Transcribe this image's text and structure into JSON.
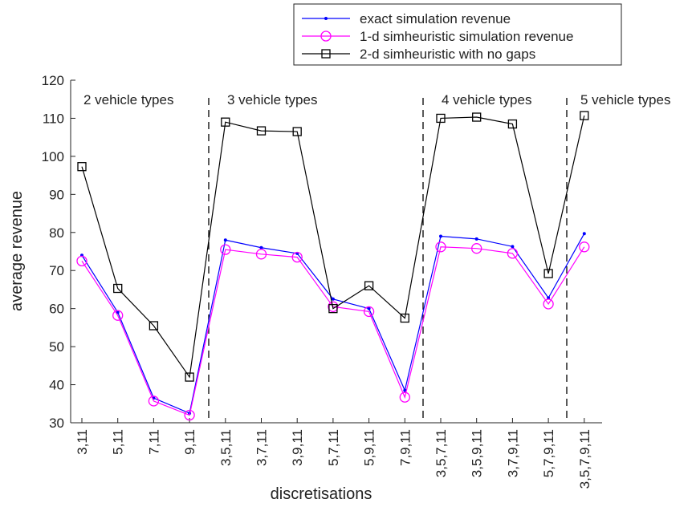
{
  "chart_data": {
    "type": "line",
    "xlabel": "discretisations",
    "ylabel": "average revenue",
    "categories": [
      "3,11",
      "5,11",
      "7,11",
      "9,11",
      "3,5,11",
      "3,7,11",
      "3,9,11",
      "5,7,11",
      "5,9,11",
      "7,9,11",
      "3,5,7,11",
      "3,5,9,11",
      "3,7,9,11",
      "5,7,9,11",
      "3,5,7,9,11"
    ],
    "series": [
      {
        "name": "exact simulation revenue",
        "color": "#0000ff",
        "marker": "dot",
        "values": [
          74,
          59,
          36.5,
          32.5,
          78,
          76,
          74.5,
          62.5,
          60,
          38.5,
          79,
          78.3,
          76.3,
          62.8,
          79.7
        ]
      },
      {
        "name": "1-d simheuristic simulation revenue",
        "color": "#ff00ff",
        "marker": "circle",
        "values": [
          72.5,
          58.2,
          35.7,
          32,
          75.5,
          74.3,
          73.5,
          60.5,
          59.2,
          36.7,
          76.2,
          75.8,
          74.5,
          61.2,
          76.2
        ]
      },
      {
        "name": "2-d simheuristic with no gaps",
        "color": "#000000",
        "marker": "square",
        "values": [
          97.3,
          65.3,
          55.5,
          42,
          109,
          106.7,
          106.5,
          60,
          66,
          57.5,
          110,
          110.3,
          108.5,
          69.2,
          110.7
        ]
      }
    ],
    "annotations": [
      "2 vehicle types",
      "3 vehicle types",
      "4 vehicle types",
      "5 vehicle types"
    ],
    "ylim": [
      30,
      120
    ],
    "yticks": [
      30,
      40,
      50,
      60,
      70,
      80,
      90,
      100,
      110,
      120
    ],
    "legend": "top-right"
  }
}
